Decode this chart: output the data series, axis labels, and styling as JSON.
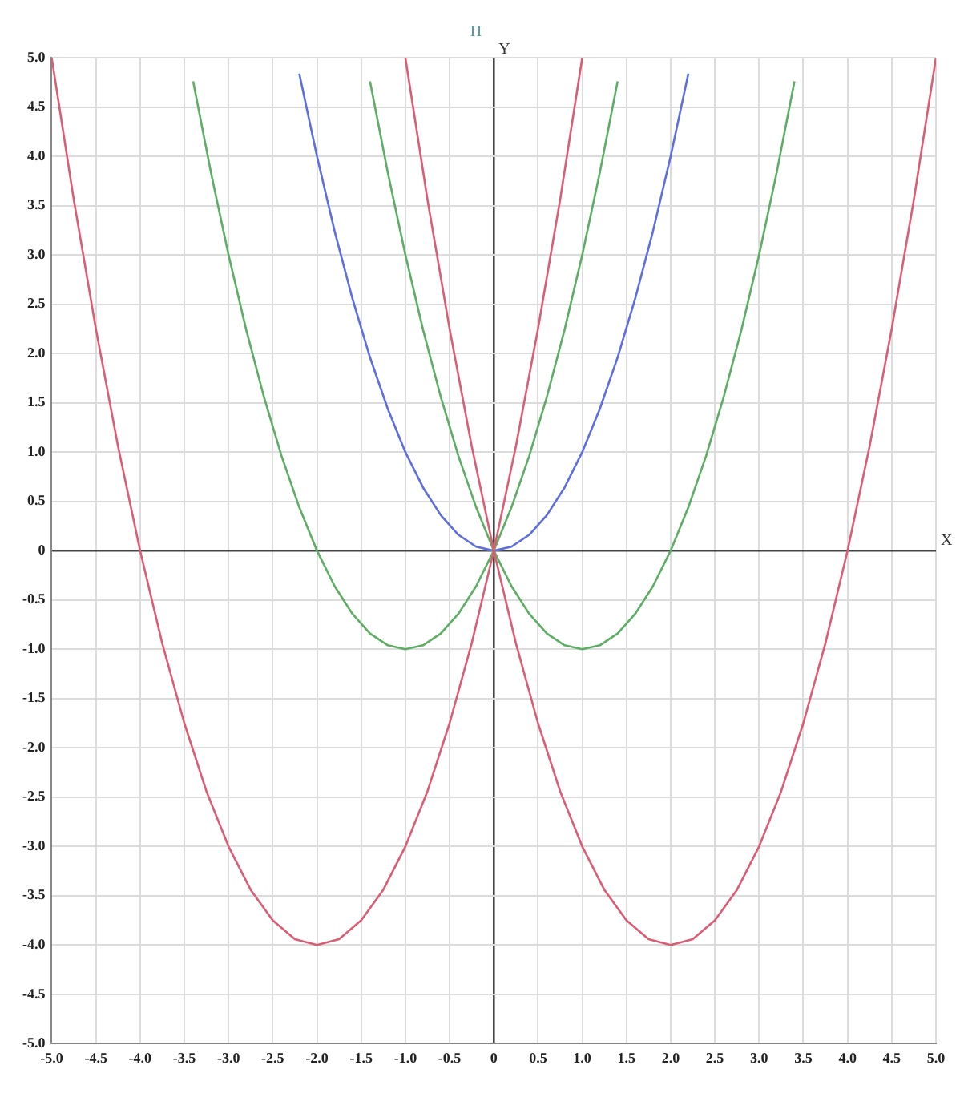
{
  "chart_data": {
    "type": "line",
    "title": "П",
    "xlabel": "X",
    "ylabel": "Y",
    "legend": false,
    "grid": true,
    "marker": "none",
    "line_style": "solid",
    "xlim": [
      -5,
      5
    ],
    "ylim": [
      -5,
      5
    ],
    "xticks": [
      {
        "value": -5,
        "label": "-5.0"
      },
      {
        "value": -4.5,
        "label": "-4.5"
      },
      {
        "value": -4,
        "label": "-4.0"
      },
      {
        "value": -3.5,
        "label": "-3.5"
      },
      {
        "value": -3,
        "label": "-3.0"
      },
      {
        "value": -2.5,
        "label": "-2.5"
      },
      {
        "value": -2,
        "label": "-2.0"
      },
      {
        "value": -1.5,
        "label": "-1.5"
      },
      {
        "value": -1,
        "label": "-1.0"
      },
      {
        "value": -0.5,
        "label": "-0.5"
      },
      0,
      {
        "value": 0.5,
        "label": "0.5"
      },
      {
        "value": 1,
        "label": "1.0"
      },
      {
        "value": 1.5,
        "label": "1.5"
      },
      {
        "value": 2,
        "label": "2.0"
      },
      {
        "value": 2.5,
        "label": "2.5"
      },
      {
        "value": 3,
        "label": "3.0"
      },
      {
        "value": 3.5,
        "label": "3.5"
      },
      {
        "value": 4,
        "label": "4.0"
      },
      {
        "value": 4.5,
        "label": "4.5"
      },
      {
        "value": 5,
        "label": "5.0"
      }
    ],
    "yticks": [
      {
        "value": -5,
        "label": "-5.0"
      },
      {
        "value": -4.5,
        "label": "-4.5"
      },
      {
        "value": -4,
        "label": "-4.0"
      },
      {
        "value": -3.5,
        "label": "-3.5"
      },
      {
        "value": -3,
        "label": "-3.0"
      },
      {
        "value": -2.5,
        "label": "-2.5"
      },
      {
        "value": -2,
        "label": "-2.0"
      },
      {
        "value": -1.5,
        "label": "-1.5"
      },
      {
        "value": -1,
        "label": "-1.0"
      },
      {
        "value": -0.5,
        "label": "-0.5"
      },
      0,
      {
        "value": 0.5,
        "label": "0.5"
      },
      {
        "value": 1,
        "label": "1.0"
      },
      {
        "value": 1.5,
        "label": "1.5"
      },
      {
        "value": 2,
        "label": "2.0"
      },
      {
        "value": 2.5,
        "label": "2.5"
      },
      {
        "value": 3,
        "label": "3.0"
      },
      {
        "value": 3.5,
        "label": "3.5"
      },
      {
        "value": 4,
        "label": "4.0"
      },
      {
        "value": 4.5,
        "label": "4.5"
      },
      {
        "value": 5,
        "label": "5.0"
      }
    ],
    "series": [
      {
        "color": "#dc5c74",
        "x": [
          -5,
          -4.75,
          -4.5,
          -4.25,
          -4,
          -3.75,
          -3.5,
          -3.25,
          -3,
          -2.75,
          -2.5,
          -2.25,
          -2,
          -1.75,
          -1.5,
          -1.25,
          -1,
          -0.75,
          -0.5,
          -0.25,
          0,
          0.25,
          0.5,
          0.75,
          1
        ],
        "values": [
          5,
          3.56,
          2.25,
          1.06,
          0,
          -0.94,
          -1.75,
          -2.44,
          -3,
          -3.44,
          -3.75,
          -3.94,
          -4,
          -3.94,
          -3.75,
          -3.44,
          -3,
          -2.44,
          -1.75,
          -0.94,
          0,
          1.06,
          2.25,
          3.56,
          5
        ]
      },
      {
        "color": "#dc5c74",
        "x": [
          -1,
          -0.75,
          -0.5,
          -0.25,
          0,
          0.25,
          0.5,
          0.75,
          1,
          1.25,
          1.5,
          1.75,
          2,
          2.25,
          2.5,
          2.75,
          3,
          3.25,
          3.5,
          3.75,
          4,
          4.25,
          4.5,
          4.75,
          5
        ],
        "values": [
          5,
          3.56,
          2.25,
          1.06,
          0,
          -0.94,
          -1.75,
          -2.44,
          -3,
          -3.44,
          -3.75,
          -3.94,
          -4,
          -3.94,
          -3.75,
          -3.44,
          -3,
          -2.44,
          -1.75,
          -0.94,
          0,
          1.06,
          2.25,
          3.56,
          5
        ]
      },
      {
        "color": "#5cae62",
        "x": [
          -3.4,
          -3.2,
          -3,
          -2.8,
          -2.6,
          -2.4,
          -2.2,
          -2,
          -1.8,
          -1.6,
          -1.4,
          -1.2,
          -1,
          -0.8,
          -0.6,
          -0.4,
          -0.2,
          0,
          0.2,
          0.4,
          0.6,
          0.8,
          1,
          1.2,
          1.4
        ],
        "values": [
          4.76,
          3.84,
          3,
          2.24,
          1.56,
          0.96,
          0.44,
          0,
          -0.36,
          -0.64,
          -0.84,
          -0.96,
          -1,
          -0.96,
          -0.84,
          -0.64,
          -0.36,
          0,
          0.44,
          0.96,
          1.56,
          2.24,
          3,
          3.84,
          4.76
        ]
      },
      {
        "color": "#5cae62",
        "x": [
          -1.4,
          -1.2,
          -1,
          -0.8,
          -0.6,
          -0.4,
          -0.2,
          0,
          0.2,
          0.4,
          0.6,
          0.8,
          1,
          1.2,
          1.4,
          1.6,
          1.8,
          2,
          2.2,
          2.4,
          2.6,
          2.8,
          3,
          3.2,
          3.4
        ],
        "values": [
          4.76,
          3.84,
          3,
          2.24,
          1.56,
          0.96,
          0.44,
          0,
          -0.36,
          -0.64,
          -0.84,
          -0.96,
          -1,
          -0.96,
          -0.84,
          -0.64,
          -0.36,
          0,
          0.44,
          0.96,
          1.56,
          2.24,
          3,
          3.84,
          4.76
        ]
      },
      {
        "color": "#5c6ee0",
        "x": [
          -2.2,
          -2,
          -1.8,
          -1.6,
          -1.4,
          -1.2,
          -1,
          -0.8,
          -0.6,
          -0.4,
          -0.2,
          0,
          0.2,
          0.4,
          0.6,
          0.8,
          1,
          1.2,
          1.4,
          1.6,
          1.8,
          2,
          2.2
        ],
        "values": [
          4.84,
          4,
          3.24,
          2.56,
          1.96,
          1.44,
          1,
          0.64,
          0.36,
          0.16,
          0.04,
          0,
          0.04,
          0.16,
          0.36,
          0.64,
          1,
          1.44,
          1.96,
          2.56,
          3.24,
          4,
          4.84
        ]
      }
    ]
  }
}
